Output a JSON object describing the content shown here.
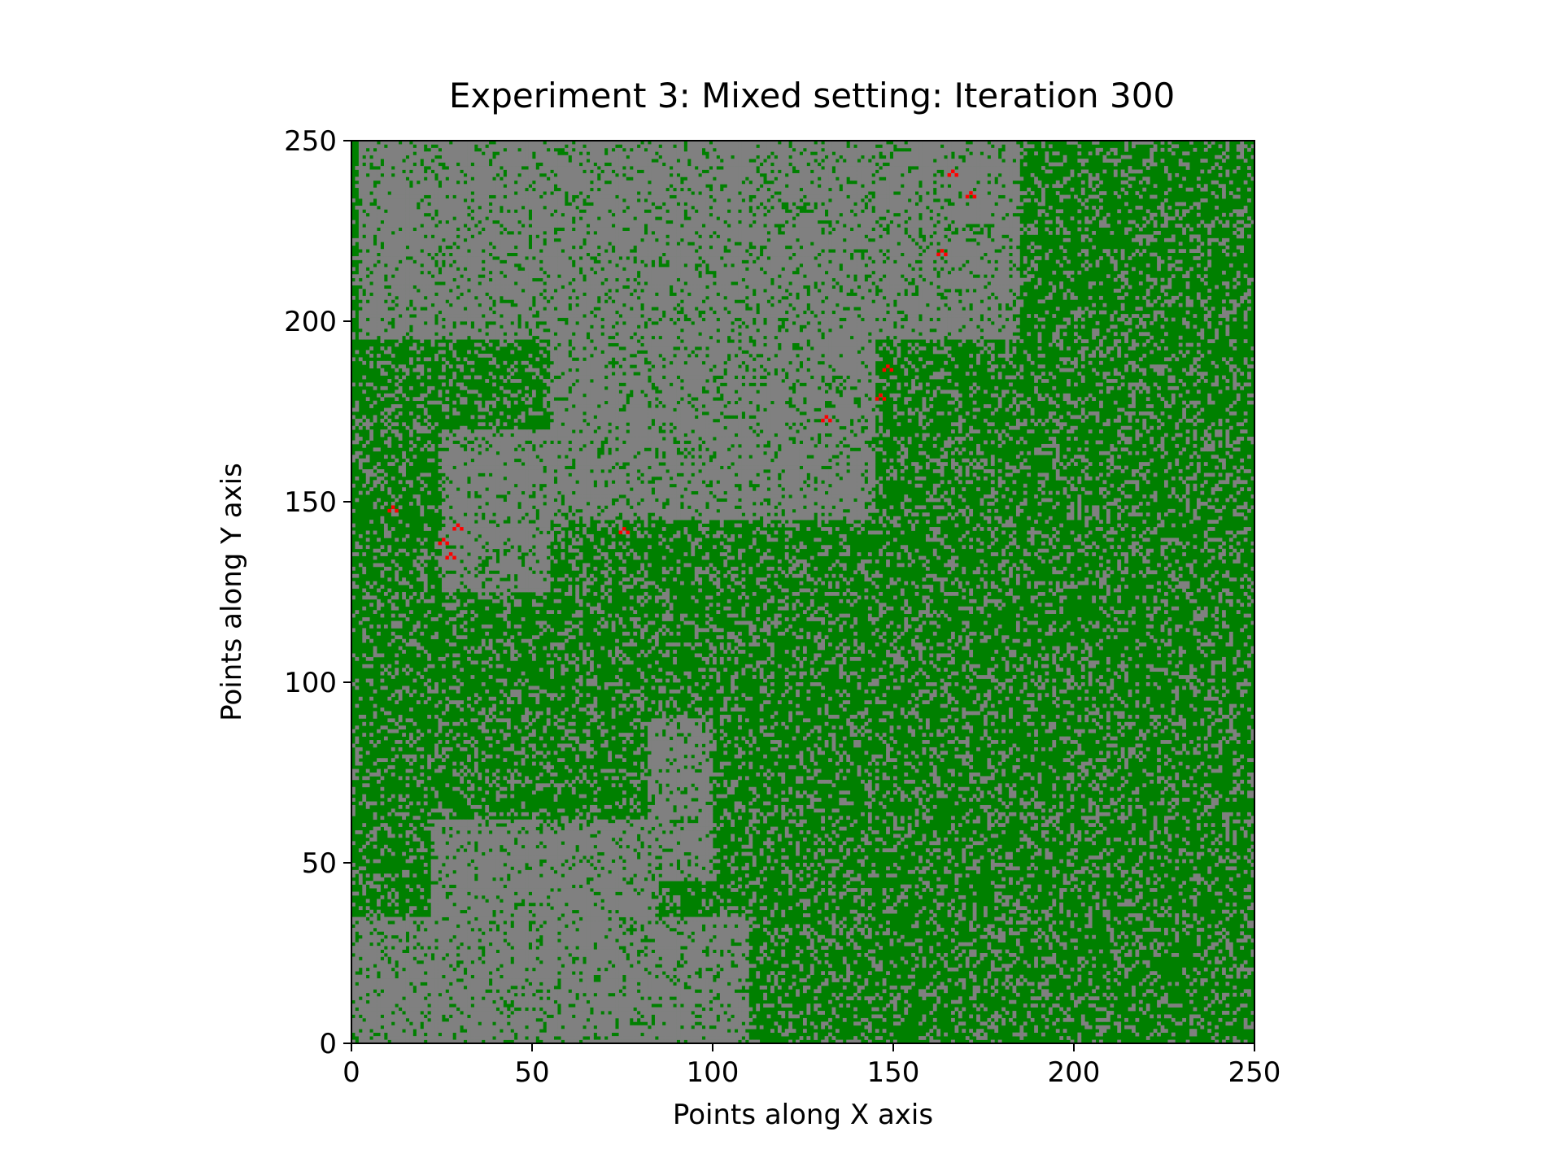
{
  "chart_data": {
    "type": "heatmap",
    "title": "Experiment 3: Mixed setting: Iteration 300",
    "xlabel": "Points along X axis",
    "ylabel": "Points along Y axis",
    "xlim": [
      0,
      250
    ],
    "ylim": [
      0,
      250
    ],
    "x_ticks": [
      0,
      50,
      100,
      150,
      200,
      250
    ],
    "y_ticks": [
      0,
      50,
      100,
      150,
      200,
      250
    ],
    "grid": false,
    "legend": "none",
    "grid_size": [
      250,
      250
    ],
    "cell_states": [
      {
        "state": "tree",
        "color": "#008000"
      },
      {
        "state": "empty",
        "color": "#808080"
      },
      {
        "state": "burning",
        "color": "#ff0000"
      }
    ],
    "empty_regions": [
      {
        "x": [
          2,
          185
        ],
        "y": [
          195,
          250
        ]
      },
      {
        "x": [
          55,
          145
        ],
        "y": [
          145,
          230
        ]
      },
      {
        "x": [
          25,
          55
        ],
        "y": [
          125,
          170
        ]
      },
      {
        "x": [
          155,
          172
        ],
        "y": [
          215,
          250
        ]
      },
      {
        "x": [
          0,
          110
        ],
        "y": [
          0,
          35
        ]
      },
      {
        "x": [
          22,
          85
        ],
        "y": [
          30,
          62
        ]
      },
      {
        "x": [
          82,
          100
        ],
        "y": [
          45,
          90
        ]
      }
    ],
    "burning_cells_approx": [
      [
        10,
        147
      ],
      [
        24,
        138
      ],
      [
        28,
        142
      ],
      [
        26,
        134
      ],
      [
        74,
        141
      ],
      [
        130,
        172
      ],
      [
        145,
        178
      ],
      [
        147,
        186
      ],
      [
        165,
        240
      ],
      [
        170,
        234
      ],
      [
        162,
        218
      ]
    ]
  }
}
